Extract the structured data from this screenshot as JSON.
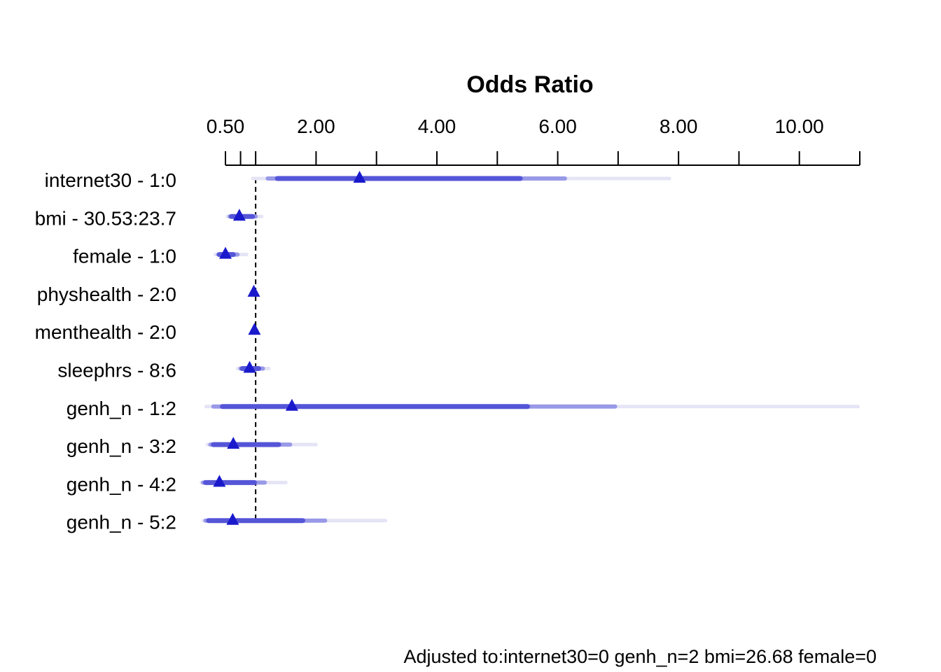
{
  "chart_data": {
    "type": "forest",
    "title": "Odds Ratio",
    "xlim": [
      0.5,
      11.0
    ],
    "major_ticks": [
      0.5,
      2.0,
      4.0,
      6.0,
      8.0,
      10.0
    ],
    "tick_labels": [
      "0.50",
      "2.00",
      "4.00",
      "6.00",
      "8.00",
      "10.00"
    ],
    "minor_ticks": [
      0.75,
      1.0,
      3.0,
      5.0,
      7.0,
      9.0,
      11.0
    ],
    "reference_value": 1.0,
    "interval_levels": [
      "0.9",
      "0.95",
      "0.99"
    ],
    "colors": {
      "point": "#1a1acc",
      "ci90": "#5555d8",
      "ci95": "#9999e8",
      "ci99": "#e4e4f6",
      "axis": "#000000"
    },
    "rows": [
      {
        "label": "internet30 - 1:0",
        "or": 2.72,
        "ci90": [
          1.36,
          5.38
        ],
        "ci95": [
          1.2,
          6.12
        ],
        "ci99": [
          0.95,
          7.85
        ]
      },
      {
        "label": "bmi - 30.53:23.7",
        "or": 0.73,
        "ci90": [
          0.6,
          0.95
        ],
        "ci95": [
          0.57,
          1.0
        ],
        "ci99": [
          0.53,
          1.1
        ]
      },
      {
        "label": "female - 1:0",
        "or": 0.5,
        "ci90": [
          0.4,
          0.63
        ],
        "ci95": [
          0.38,
          0.7
        ],
        "ci99": [
          0.33,
          0.85
        ]
      },
      {
        "label": "physhealth - 2:0",
        "or": 0.97,
        "ci90": [
          0.95,
          0.99
        ],
        "ci95": [
          0.94,
          1.0
        ],
        "ci99": [
          0.93,
          1.01
        ]
      },
      {
        "label": "menthealth - 2:0",
        "or": 0.98,
        "ci90": [
          0.96,
          1.0
        ],
        "ci95": [
          0.95,
          1.01
        ],
        "ci99": [
          0.94,
          1.02
        ]
      },
      {
        "label": "sleephrs - 8:6",
        "or": 0.9,
        "ci90": [
          0.78,
          1.05
        ],
        "ci95": [
          0.75,
          1.12
        ],
        "ci99": [
          0.7,
          1.22
        ]
      },
      {
        "label": "genh_n - 1:2",
        "or": 1.6,
        "ci90": [
          0.45,
          5.5
        ],
        "ci95": [
          0.3,
          6.95
        ],
        "ci99": [
          0.18,
          10.97
        ]
      },
      {
        "label": "genh_n - 3:2",
        "or": 0.63,
        "ci90": [
          0.3,
          1.38
        ],
        "ci95": [
          0.25,
          1.57
        ],
        "ci99": [
          0.2,
          2.0
        ]
      },
      {
        "label": "genh_n - 4:2",
        "or": 0.4,
        "ci90": [
          0.17,
          0.98
        ],
        "ci95": [
          0.13,
          1.15
        ],
        "ci99": [
          0.1,
          1.5
        ]
      },
      {
        "label": "genh_n - 5:2",
        "or": 0.62,
        "ci90": [
          0.22,
          1.78
        ],
        "ci95": [
          0.17,
          2.15
        ],
        "ci99": [
          0.13,
          3.15
        ]
      }
    ],
    "footnote": "Adjusted to:internet30=0 genh_n=2 bmi=26.68 female=0"
  }
}
